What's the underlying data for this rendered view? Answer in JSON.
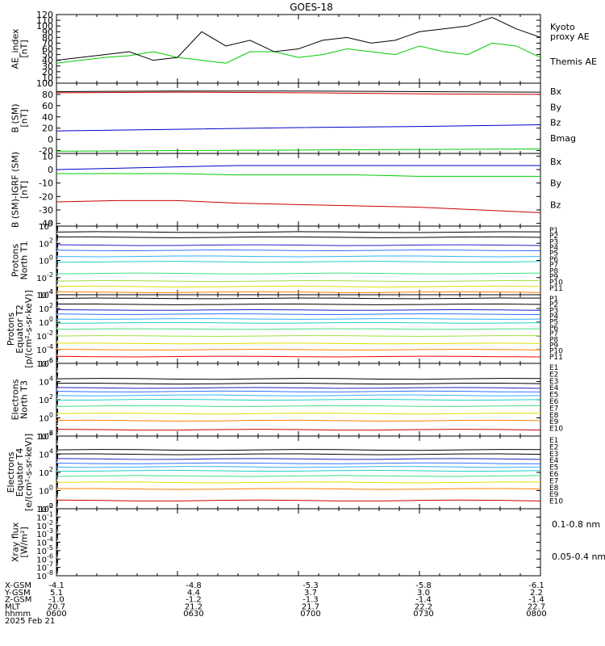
{
  "title": "GOES-18",
  "chart_data": [
    {
      "type": "line",
      "panel": "ae",
      "ylabel": [
        "AE_index",
        "[nT]"
      ],
      "ylim": [
        0,
        120
      ],
      "yticks": [
        "120",
        "110",
        "100",
        "90",
        "80",
        "70",
        "60",
        "50",
        "40",
        "30",
        "20",
        "10",
        "0"
      ],
      "ytick_values": [
        120,
        110,
        100,
        90,
        80,
        70,
        60,
        50,
        40,
        30,
        20,
        10,
        0
      ],
      "x": [
        0,
        6,
        12,
        18,
        24,
        30,
        36,
        42,
        48,
        54,
        60,
        66,
        72,
        78,
        84,
        90,
        96,
        102,
        108,
        114,
        120
      ],
      "series": [
        {
          "name": "Kyoto proxy AE",
          "label_lines": [
            "Kyoto",
            "proxy AE"
          ],
          "color": "#00cc00",
          "values": [
            35,
            40,
            45,
            48,
            55,
            45,
            40,
            35,
            55,
            55,
            45,
            50,
            60,
            55,
            50,
            65,
            55,
            50,
            70,
            65,
            45
          ]
        },
        {
          "name": "Themis AE",
          "label_lines": [
            "Themis AE"
          ],
          "color": "#000000",
          "values": [
            40,
            45,
            50,
            55,
            40,
            45,
            90,
            65,
            75,
            55,
            60,
            75,
            80,
            70,
            75,
            90,
            95,
            100,
            115,
            95,
            80
          ]
        }
      ]
    },
    {
      "type": "line",
      "panel": "b",
      "ylabel": [
        "B (SM)",
        "[nT]"
      ],
      "ylim": [
        -25,
        100
      ],
      "yticks": [
        "100",
        "80",
        "60",
        "40",
        "20",
        "0",
        "-20"
      ],
      "ytick_values": [
        100,
        80,
        60,
        40,
        20,
        0,
        -20
      ],
      "x": [
        0,
        30,
        60,
        90,
        120
      ],
      "series": [
        {
          "name": "Bx",
          "color": "#0000cc",
          "values": [
            15,
            18,
            21,
            23,
            26
          ]
        },
        {
          "name": "By",
          "color": "#00cc00",
          "values": [
            -21,
            -20,
            -19,
            -18,
            -17
          ]
        },
        {
          "name": "Bz",
          "color": "#cc0000",
          "values": [
            83,
            84,
            83,
            81,
            80
          ]
        },
        {
          "name": "Bmag",
          "color": "#000000",
          "values": [
            85,
            86,
            86,
            85,
            84
          ]
        }
      ]
    },
    {
      "type": "line",
      "panel": "bigrf",
      "ylabel": [
        "B (SM)-IGRF (SM)",
        "[nT]"
      ],
      "ylim": [
        -42,
        12
      ],
      "yticks": [
        "10",
        "0",
        "-10",
        "-20",
        "-30",
        "-40"
      ],
      "ytick_values": [
        10,
        0,
        -10,
        -20,
        -30,
        -40
      ],
      "x": [
        0,
        15,
        30,
        45,
        60,
        75,
        90,
        105,
        120
      ],
      "series": [
        {
          "name": "Bx",
          "color": "#0000cc",
          "values": [
            0,
            1,
            2,
            3,
            3,
            3,
            3,
            3,
            3
          ]
        },
        {
          "name": "By",
          "color": "#00cc00",
          "values": [
            -3,
            -3,
            -3,
            -4,
            -4,
            -4,
            -5,
            -5,
            -5
          ]
        },
        {
          "name": "Bz",
          "color": "#cc0000",
          "values": [
            -24,
            -23,
            -23,
            -25,
            -26,
            -27,
            -28,
            -30,
            -32
          ]
        }
      ]
    },
    {
      "type": "line",
      "panel": "protons_t1",
      "scale": "log",
      "ylabel": [
        "Protons",
        "North T1"
      ],
      "ylim": [
        0.0001,
        10000
      ],
      "ytick_values": [
        10000,
        100,
        1,
        0.01,
        0.0001
      ],
      "yticks": [
        {
          "base": "10",
          "exp": "4"
        },
        {
          "base": "10",
          "exp": "2"
        },
        {
          "base": "10",
          "exp": "0"
        },
        {
          "base": "10",
          "exp": "-2"
        },
        {
          "base": "10",
          "exp": "-4"
        }
      ],
      "legend": [
        "P1",
        "P2",
        "P3",
        "P4",
        "P5",
        "P6",
        "P7",
        "P8",
        "P9",
        "P10",
        "P11"
      ],
      "colors": [
        "#000000",
        "#000000",
        "#2020c0",
        "#3070ff",
        "#30b0ff",
        "#20d0c0",
        "#40e080",
        "#a0e040",
        "#e0e000",
        "#ff8000",
        "#ff0000"
      ],
      "levels": [
        2000,
        500,
        60,
        15,
        3,
        0.7,
        0.03,
        0.004,
        0.0009,
        0.0002,
        5e-05
      ]
    },
    {
      "type": "line",
      "panel": "protons_t2",
      "scale": "log",
      "ylabel": [
        "Protons",
        "Equator T2",
        "[p/(cm²-s-sr-keV)]"
      ],
      "ylim": [
        1e-06,
        10000
      ],
      "ytick_values": [
        10000,
        100,
        1,
        0.01,
        0.0001,
        1e-06
      ],
      "yticks": [
        {
          "base": "10",
          "exp": "4"
        },
        {
          "base": "10",
          "exp": "2"
        },
        {
          "base": "10",
          "exp": "0"
        },
        {
          "base": "10",
          "exp": "-2"
        },
        {
          "base": "10",
          "exp": "-4"
        },
        {
          "base": "10",
          "exp": "-6"
        }
      ],
      "legend": [
        "P1",
        "P2",
        "P3",
        "P4",
        "P5",
        "P6",
        "P7",
        "P8",
        "P9",
        "P10",
        "P11"
      ],
      "colors": [
        "#000000",
        "#000000",
        "#2020c0",
        "#3070ff",
        "#30b0ff",
        "#20d0c0",
        "#40e080",
        "#a0e040",
        "#e0e000",
        "#ff8000",
        "#ff0000"
      ],
      "levels": [
        3000,
        400,
        60,
        15,
        3,
        0.8,
        0.1,
        0.01,
        0.0008,
        0.0001,
        1e-05
      ]
    },
    {
      "type": "line",
      "panel": "electrons_t3",
      "scale": "log",
      "ylabel": [
        "Electrons",
        "North T3"
      ],
      "ylim": [
        0.01,
        1000000
      ],
      "ytick_values": [
        1000000,
        10000,
        100,
        1,
        0.01
      ],
      "yticks": [
        {
          "base": "10",
          "exp": "6"
        },
        {
          "base": "10",
          "exp": "4"
        },
        {
          "base": "10",
          "exp": "2"
        },
        {
          "base": "10",
          "exp": "0"
        },
        {
          "base": "10",
          "exp": "-2"
        }
      ],
      "legend": [
        "E1",
        "E2",
        "E3",
        "E4",
        "E5",
        "E6",
        "E7",
        "E8",
        "E9",
        "E10"
      ],
      "colors": [
        "#000000",
        "#000000",
        "#2020c0",
        "#3070ff",
        "#30b0ff",
        "#20d0c0",
        "#40e080",
        "#e0e000",
        "#ff8000",
        "#cc0000"
      ],
      "levels": [
        20000,
        6000,
        2000,
        800,
        300,
        100,
        20,
        3,
        0.5,
        0.05
      ]
    },
    {
      "type": "line",
      "panel": "electrons_t4",
      "scale": "log",
      "ylabel": [
        "Electrons",
        "Equator T4",
        "[e/(cm²-s-sr-keV)]"
      ],
      "ylim": [
        0.01,
        1000000
      ],
      "ytick_values": [
        1000000,
        10000,
        100,
        1,
        0.01
      ],
      "yticks": [
        {
          "base": "10",
          "exp": "6"
        },
        {
          "base": "10",
          "exp": "4"
        },
        {
          "base": "10",
          "exp": "2"
        },
        {
          "base": "10",
          "exp": "0"
        },
        {
          "base": "10",
          "exp": "-2"
        }
      ],
      "legend": [
        "E1",
        "E2",
        "E3",
        "E4",
        "E5",
        "E6",
        "E7",
        "E8",
        "E9",
        "E10"
      ],
      "colors": [
        "#000000",
        "#000000",
        "#2020c0",
        "#3070ff",
        "#30b0ff",
        "#20d0c0",
        "#40e080",
        "#e0e000",
        "#ff8000",
        "#cc0000"
      ],
      "levels": [
        30000,
        10000,
        3000,
        1000,
        400,
        150,
        40,
        8,
        1.5,
        0.08
      ]
    },
    {
      "type": "line",
      "panel": "xray",
      "scale": "log",
      "ylabel": [
        "Xray flux",
        "[W/m²]"
      ],
      "ylim": [
        1e-08,
        1
      ],
      "ytick_values": [
        1,
        0.1,
        0.01,
        0.001,
        0.0001,
        1e-05,
        1e-06,
        1e-07,
        1e-08
      ],
      "yticks": [
        {
          "base": "10",
          "exp": "0"
        },
        {
          "base": "10",
          "exp": "-1"
        },
        {
          "base": "10",
          "exp": "-2"
        },
        {
          "base": "10",
          "exp": "-3"
        },
        {
          "base": "10",
          "exp": "-4"
        },
        {
          "base": "10",
          "exp": "-5"
        },
        {
          "base": "10",
          "exp": "-6"
        },
        {
          "base": "10",
          "exp": "-7"
        },
        {
          "base": "10",
          "exp": "-8"
        }
      ],
      "series": [
        {
          "name": "0.1-0.8 nm",
          "color": "#cc0000"
        },
        {
          "name": "0.05-0.4 nm",
          "color": "#0000cc"
        }
      ]
    }
  ],
  "footer": {
    "row_labels": [
      "X-GSM",
      "Y-GSM",
      "Z-GSM",
      "MLT",
      "hhmm",
      "2025 Feb 21"
    ],
    "columns": [
      [
        "-4.1",
        "5.1",
        "-1.0",
        "20.7",
        "0600"
      ],
      [
        "-4.8",
        "4.4",
        "-1.2",
        "21.2",
        "0630"
      ],
      [
        "-5.3",
        "3.7",
        "-1.3",
        "21.7",
        "0700"
      ],
      [
        "-5.8",
        "3.0",
        "-1.4",
        "22.2",
        "0730"
      ],
      [
        "-6.1",
        "2.2",
        "-1.4",
        "22.7",
        "0800"
      ]
    ]
  }
}
